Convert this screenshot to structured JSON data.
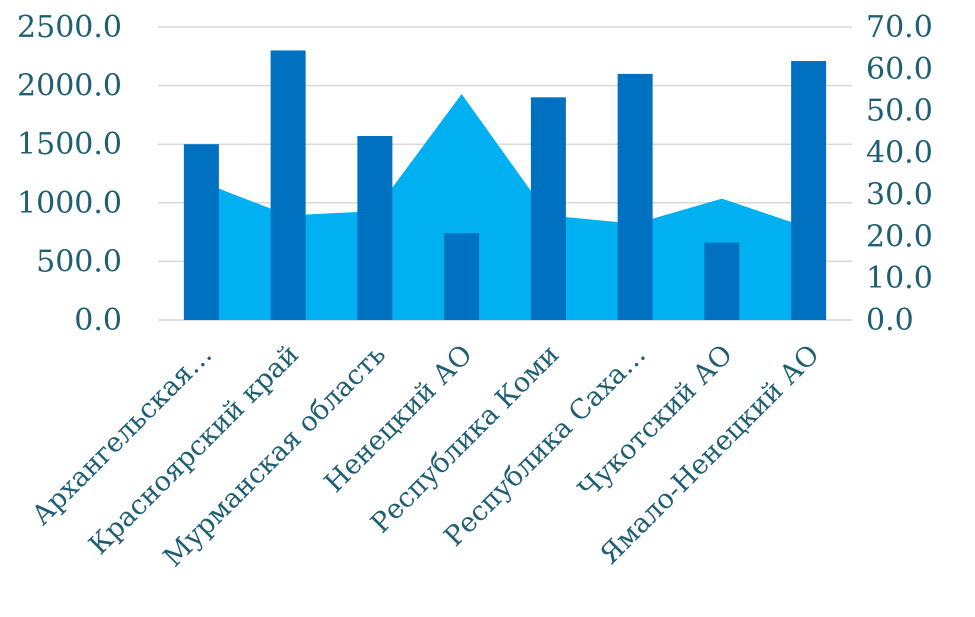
{
  "chart_data": {
    "type": "bar",
    "categories": [
      "Архангельская…",
      "Красноярский край",
      "Мурманская область",
      "Ненецкий АО",
      "Республика Коми",
      "Республика Саха…",
      "Чукотский АО",
      "Ямало-Ненецкий АО"
    ],
    "series": [
      {
        "chart_kind": "bar",
        "axis": "left",
        "color": "#0070C0",
        "values": [
          1500,
          2300,
          1570,
          740,
          1900,
          2100,
          660,
          2210
        ]
      },
      {
        "chart_kind": "area",
        "axis": "right",
        "color": "#00B0F0",
        "values": [
          33,
          25,
          26,
          54,
          25,
          23,
          29,
          22
        ]
      }
    ],
    "y_left": {
      "range": [
        0,
        2500
      ],
      "ticks": [
        "0.0",
        "500.0",
        "1000.0",
        "1500.0",
        "2000.0",
        "2500.0"
      ]
    },
    "y_right": {
      "range": [
        0,
        70
      ],
      "ticks": [
        "0.0",
        "10.0",
        "20.0",
        "30.0",
        "40.0",
        "50.0",
        "60.0",
        "70.0"
      ]
    },
    "grid": true,
    "legend": "none",
    "title": "",
    "xlabel": "",
    "ylabel": ""
  }
}
